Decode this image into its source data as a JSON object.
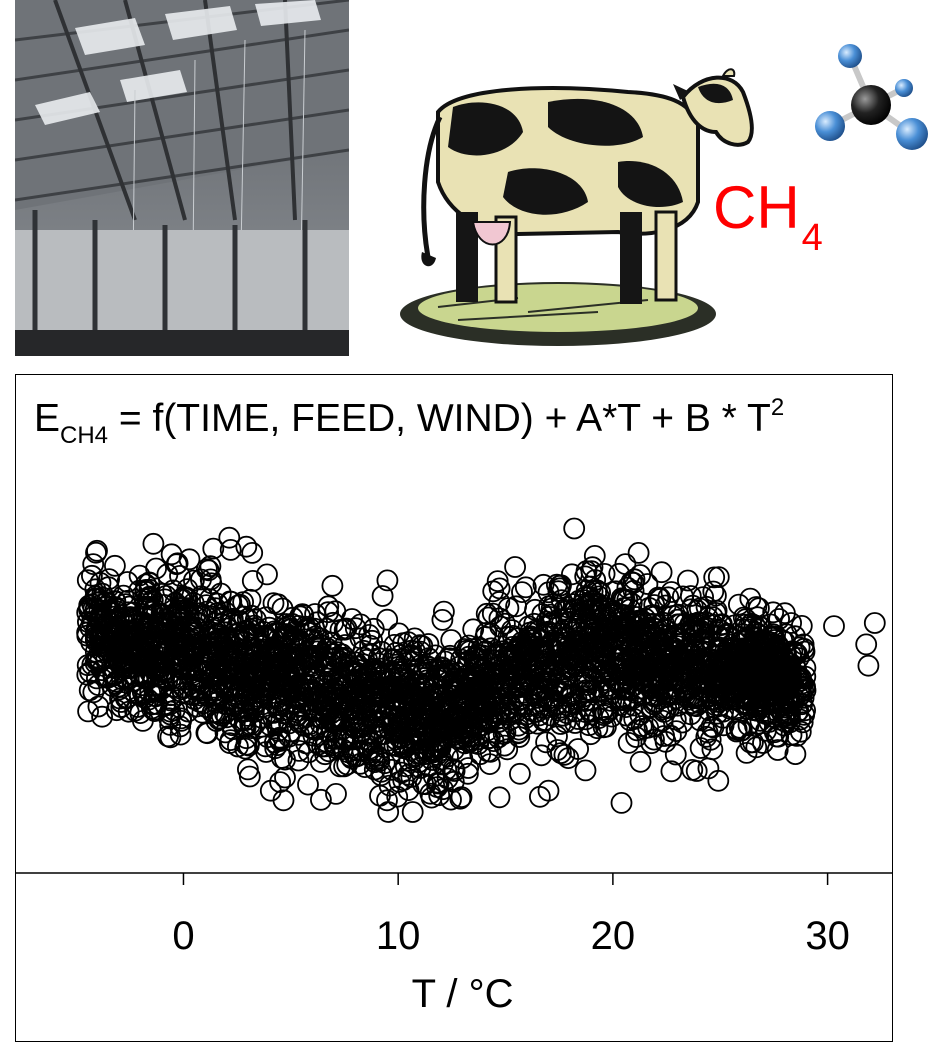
{
  "photo": {
    "subject": "barn-interior-photo"
  },
  "cow": {
    "subject": "cow-woodcut-illustration"
  },
  "molecule": {
    "subject": "methane-molecule-model",
    "colors": {
      "carbon": "#222222",
      "hydrogen": "#4a8fd6"
    }
  },
  "ch4_label": {
    "main": "CH",
    "sub": "4",
    "color": "#ff0000"
  },
  "equation": {
    "lhs_main": "E",
    "lhs_sub": "CH4",
    "rhs": " = f(TIME, FEED, WIND) + A*T + B * T",
    "power": "2"
  },
  "chart_data": {
    "type": "scatter",
    "title": "",
    "xlabel": "T / °C",
    "ylabel": "",
    "xlim": [
      -7.8,
      33
    ],
    "ylim": [
      -3.2,
      3.0
    ],
    "xticks": [
      0,
      10,
      20,
      30
    ],
    "tick_labels": [
      "0",
      "10",
      "20",
      "30"
    ],
    "grid": false,
    "marker": "open-circle",
    "marker_color": "#000000",
    "point_count_drawn": 3200,
    "note_points": "dense point cloud; representative sample following visible envelope",
    "outliers": [
      {
        "x": 18.2,
        "y": 2.45
      },
      {
        "x": -1.4,
        "y": 2.2
      },
      {
        "x": 2.2,
        "y": 2.1
      },
      {
        "x": 3.2,
        "y": 2.05
      },
      {
        "x": 21.2,
        "y": 2.05
      },
      {
        "x": 9.5,
        "y": 1.6
      },
      {
        "x": 19.0,
        "y": 1.75
      },
      {
        "x": 28.5,
        "y": -1.25
      },
      {
        "x": 20.4,
        "y": -2.05
      },
      {
        "x": 3.0,
        "y": -1.5
      },
      {
        "x": 5.8,
        "y": -1.75
      },
      {
        "x": 11.5,
        "y": -1.9
      },
      {
        "x": 6.4,
        "y": -2.0
      },
      {
        "x": 17.0,
        "y": -1.85
      },
      {
        "x": 12.3,
        "y": -1.65
      },
      {
        "x": 16.6,
        "y": -1.95
      },
      {
        "x": 32.2,
        "y": 0.9
      },
      {
        "x": 31.8,
        "y": 0.55
      },
      {
        "x": 30.3,
        "y": 0.85
      },
      {
        "x": 31.9,
        "y": 0.2
      },
      {
        "x": 26.4,
        "y": 1.3
      },
      {
        "x": 24.8,
        "y": 1.35
      },
      {
        "x": 28.3,
        "y": 0.9
      },
      {
        "x": 22.7,
        "y": -0.95
      }
    ]
  }
}
